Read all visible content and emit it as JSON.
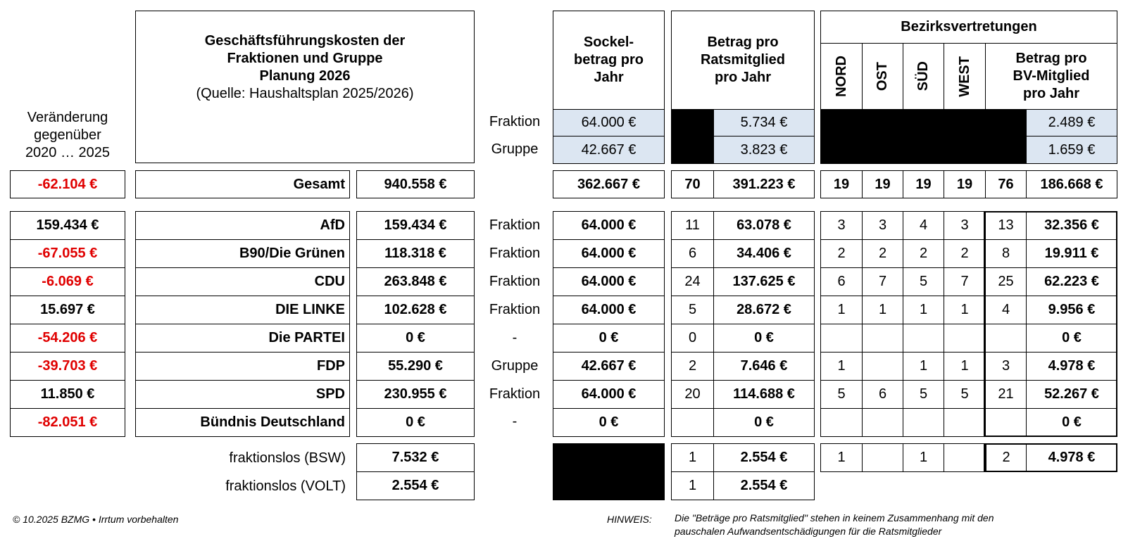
{
  "title": {
    "line1": "Geschäftsführungskosten der",
    "line2": "Fraktionen und Gruppe",
    "line3": "Planung 2026",
    "source": "(Quelle: Haushaltsplan 2025/2026)"
  },
  "change_header": {
    "line1": "Veränderung",
    "line2": "gegenüber",
    "line3": "2020 … 2025"
  },
  "headers": {
    "sockel": {
      "line1": "Sockel-",
      "line2": "betrag pro",
      "line3": "Jahr"
    },
    "betrag_rat": {
      "line1": "Betrag pro",
      "line2": "Ratsmitglied",
      "line3": "pro Jahr"
    },
    "bezirk": "Bezirksvertretungen",
    "nord": "NORD",
    "ost": "OST",
    "sued": "SÜD",
    "west": "WEST",
    "betrag_bv": {
      "line1": "Betrag pro",
      "line2": "BV-Mitglied",
      "line3": "pro Jahr"
    }
  },
  "rates": [
    {
      "type": "Fraktion",
      "sockel": "64.000 €",
      "rat": "5.734 €",
      "bv": "2.489 €"
    },
    {
      "type": "Gruppe",
      "sockel": "42.667 €",
      "rat": "3.823 €",
      "bv": "1.659 €"
    }
  ],
  "total": {
    "change": "-62.104 €",
    "label": "Gesamt",
    "sum": "940.558 €",
    "sockel": "362.667 €",
    "rat_count": "70",
    "rat_amount": "391.223 €",
    "nord": "19",
    "ost": "19",
    "sued": "19",
    "west": "19",
    "bv_count": "76",
    "bv_amount": "186.668 €"
  },
  "rows": [
    {
      "change": "159.434 €",
      "change_neg": false,
      "party": "AfD",
      "sum": "159.434 €",
      "type": "Fraktion",
      "sockel": "64.000 €",
      "rat_count": "11",
      "rat_amount": "63.078 €",
      "nord": "3",
      "ost": "3",
      "sued": "4",
      "west": "3",
      "bv_count": "13",
      "bv_amount": "32.356 €"
    },
    {
      "change": "-67.055 €",
      "change_neg": true,
      "party": "B90/Die Grünen",
      "sum": "118.318 €",
      "type": "Fraktion",
      "sockel": "64.000 €",
      "rat_count": "6",
      "rat_amount": "34.406 €",
      "nord": "2",
      "ost": "2",
      "sued": "2",
      "west": "2",
      "bv_count": "8",
      "bv_amount": "19.911 €"
    },
    {
      "change": "-6.069 €",
      "change_neg": true,
      "party": "CDU",
      "sum": "263.848 €",
      "type": "Fraktion",
      "sockel": "64.000 €",
      "rat_count": "24",
      "rat_amount": "137.625 €",
      "nord": "6",
      "ost": "7",
      "sued": "5",
      "west": "7",
      "bv_count": "25",
      "bv_amount": "62.223 €"
    },
    {
      "change": "15.697 €",
      "change_neg": false,
      "party": "DIE LINKE",
      "sum": "102.628 €",
      "type": "Fraktion",
      "sockel": "64.000 €",
      "rat_count": "5",
      "rat_amount": "28.672 €",
      "nord": "1",
      "ost": "1",
      "sued": "1",
      "west": "1",
      "bv_count": "4",
      "bv_amount": "9.956 €"
    },
    {
      "change": "-54.206 €",
      "change_neg": true,
      "party": "Die PARTEI",
      "sum": "0 €",
      "type": "-",
      "sockel": "0 €",
      "rat_count": "0",
      "rat_amount": "0 €",
      "nord": "",
      "ost": "",
      "sued": "",
      "west": "",
      "bv_count": "",
      "bv_amount": "0 €"
    },
    {
      "change": "-39.703 €",
      "change_neg": true,
      "party": "FDP",
      "sum": "55.290 €",
      "type": "Gruppe",
      "sockel": "42.667 €",
      "rat_count": "2",
      "rat_amount": "7.646 €",
      "nord": "1",
      "ost": "",
      "sued": "1",
      "west": "1",
      "bv_count": "3",
      "bv_amount": "4.978 €"
    },
    {
      "change": "11.850 €",
      "change_neg": false,
      "party": "SPD",
      "sum": "230.955 €",
      "type": "Fraktion",
      "sockel": "64.000 €",
      "rat_count": "20",
      "rat_amount": "114.688 €",
      "nord": "5",
      "ost": "6",
      "sued": "5",
      "west": "5",
      "bv_count": "21",
      "bv_amount": "52.267 €"
    },
    {
      "change": "-82.051 €",
      "change_neg": true,
      "party": "Bündnis Deutschland",
      "sum": "0 €",
      "type": "-",
      "sockel": "0 €",
      "rat_count": "",
      "rat_amount": "0 €",
      "nord": "",
      "ost": "",
      "sued": "",
      "west": "",
      "bv_count": "",
      "bv_amount": "0 €"
    }
  ],
  "fraktionslos": [
    {
      "label": "fraktionslos (BSW)",
      "sum": "7.532 €",
      "rat_count": "1",
      "rat_amount": "2.554 €",
      "nord": "1",
      "ost": "",
      "sued": "1",
      "west": "",
      "bv_count": "2",
      "bv_amount": "4.978 €"
    },
    {
      "label": "fraktionslos (VOLT)",
      "sum": "2.554 €",
      "rat_count": "1",
      "rat_amount": "2.554 €"
    }
  ],
  "footer": {
    "copyright": "© 10.2025 BZMG • Irrtum vorbehalten",
    "hinweis_label": "HINWEIS:",
    "hinweis_line1": "Die \"Beträge pro Ratsmitglied\" stehen in keinem Zusammenhang mit den",
    "hinweis_line2": "pauschalen Aufwandsentschädigungen für die Ratsmitglieder"
  },
  "colors": {
    "negative": "#e00000",
    "rate_fill": "#dce6f2",
    "redacted": "#000000"
  }
}
